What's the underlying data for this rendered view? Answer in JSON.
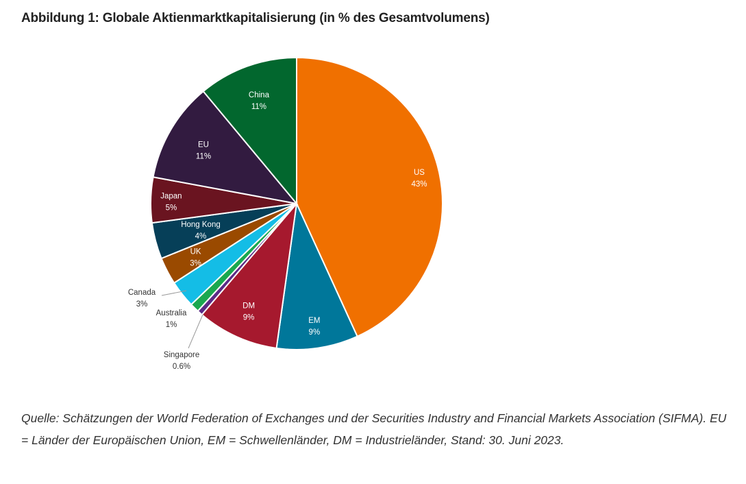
{
  "chart_data": {
    "type": "pie",
    "title": "Abbildung 1: Globale Aktienmarktkapitalisierung (in % des Gesamtvolumens)",
    "start": "top",
    "direction": "clockwise",
    "slices": [
      {
        "label": "US",
        "value": 43,
        "value_label": "43%",
        "color": "#f07000",
        "label_pos": "inside"
      },
      {
        "label": "EM",
        "value": 9,
        "value_label": "9%",
        "color": "#00779a",
        "label_pos": "inside"
      },
      {
        "label": "DM",
        "value": 9,
        "value_label": "9%",
        "color": "#a6192e",
        "label_pos": "inside"
      },
      {
        "label": "Singapore",
        "value": 0.6,
        "value_label": "0.6%",
        "color": "#5b2a86",
        "label_pos": "outside"
      },
      {
        "label": "Australia",
        "value": 1,
        "value_label": "1%",
        "color": "#1aa84f",
        "label_pos": "outside"
      },
      {
        "label": "Canada",
        "value": 3,
        "value_label": "3%",
        "color": "#14bde6",
        "label_pos": "outside"
      },
      {
        "label": "UK",
        "value": 3,
        "value_label": "3%",
        "color": "#9a4a00",
        "label_pos": "inside"
      },
      {
        "label": "Hong Kong",
        "value": 4,
        "value_label": "4%",
        "color": "#063f58",
        "label_pos": "inside"
      },
      {
        "label": "Japan",
        "value": 5,
        "value_label": "5%",
        "color": "#6a1420",
        "label_pos": "inside"
      },
      {
        "label": "EU",
        "value": 11,
        "value_label": "11%",
        "color": "#321b40",
        "label_pos": "inside"
      },
      {
        "label": "China",
        "value": 11,
        "value_label": "11%",
        "color": "#02672e",
        "label_pos": "inside"
      }
    ]
  },
  "source_note": "Quelle: Schätzungen der World Federation of Exchanges und der Securities Industry and Financial Markets Association (SIFMA). EU = Länder der Europäischen Union, EM = Schwellenländer, DM = Industrieländer, Stand: 30. Juni 2023."
}
